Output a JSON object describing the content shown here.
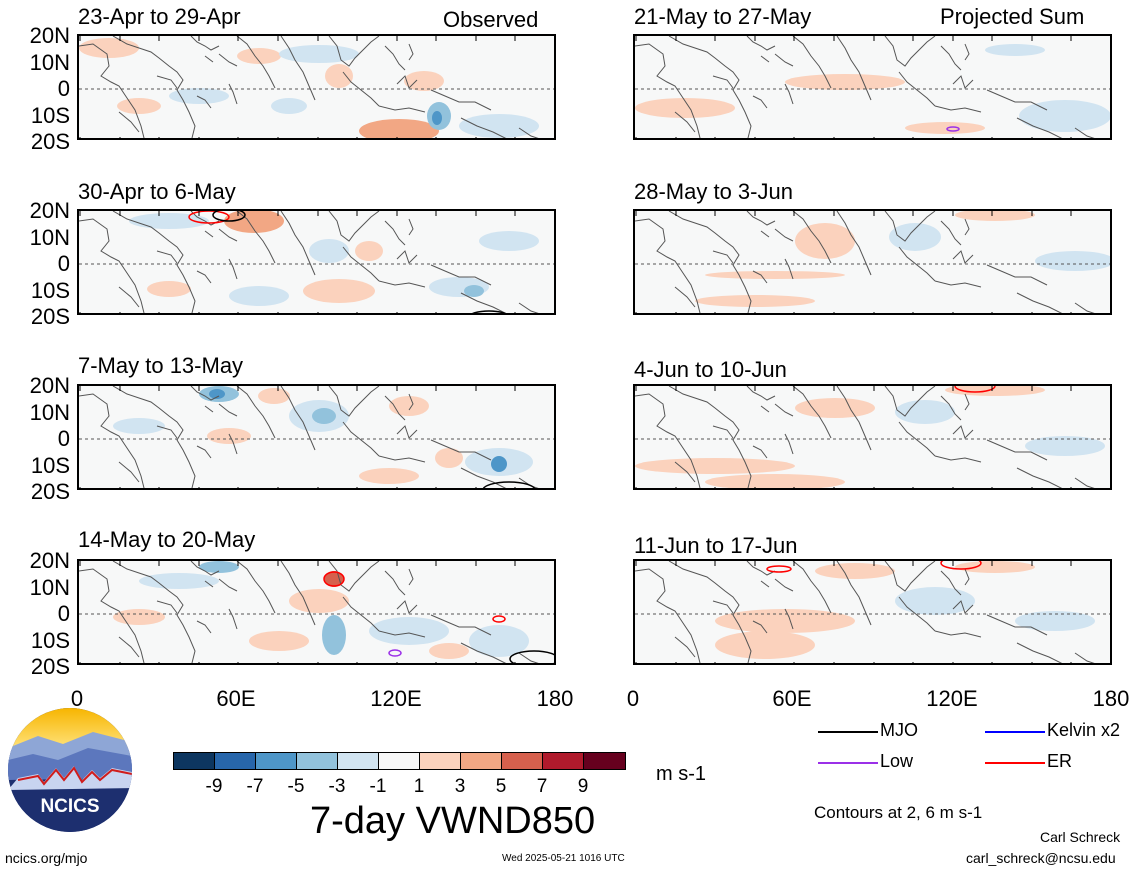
{
  "panels": [
    {
      "id": "p1",
      "title": "23-Apr to 29-Apr",
      "corner": "Observed"
    },
    {
      "id": "p2",
      "title": "30-Apr to 6-May",
      "corner": ""
    },
    {
      "id": "p3",
      "title": "7-May to 13-May",
      "corner": ""
    },
    {
      "id": "p4",
      "title": "14-May to 20-May",
      "corner": ""
    },
    {
      "id": "p5",
      "title": "21-May to 27-May",
      "corner": "Projected Sum"
    },
    {
      "id": "p6",
      "title": "28-May to 3-Jun",
      "corner": ""
    },
    {
      "id": "p7",
      "title": "4-Jun to 10-Jun",
      "corner": ""
    },
    {
      "id": "p8",
      "title": "11-Jun to 17-Jun",
      "corner": ""
    }
  ],
  "y_ticks": [
    "20N",
    "10N",
    "0",
    "10S",
    "20S"
  ],
  "x_ticks": [
    "0",
    "60E",
    "120E",
    "180"
  ],
  "colorbar": {
    "colors": [
      "#0d3660",
      "#2766ab",
      "#4e96c8",
      "#92c2dc",
      "#d1e4f1",
      "#f7f7f7",
      "#fbd2bd",
      "#f2a784",
      "#d6604d",
      "#b01a2c",
      "#66001e"
    ],
    "ticks": [
      "-9",
      "-7",
      "-5",
      "-3",
      "-1",
      "1",
      "3",
      "5",
      "7",
      "9"
    ],
    "units": "m s-1"
  },
  "title": "7-day VWND850",
  "legend": [
    {
      "label": "MJO",
      "color": "#000000"
    },
    {
      "label": "Kelvin x2",
      "color": "#0000ff"
    },
    {
      "label": "Low",
      "color": "#9b30e8"
    },
    {
      "label": "ER",
      "color": "#ff0000"
    }
  ],
  "contours_note": "Contours at 2, 6 m s-1",
  "logo_text": "NCICS",
  "website": "ncics.org/mjo",
  "timestamp": "Wed 2025-05-21 1016 UTC",
  "author": "Carl Schreck",
  "email": "carl_schreck@ncsu.edu"
}
